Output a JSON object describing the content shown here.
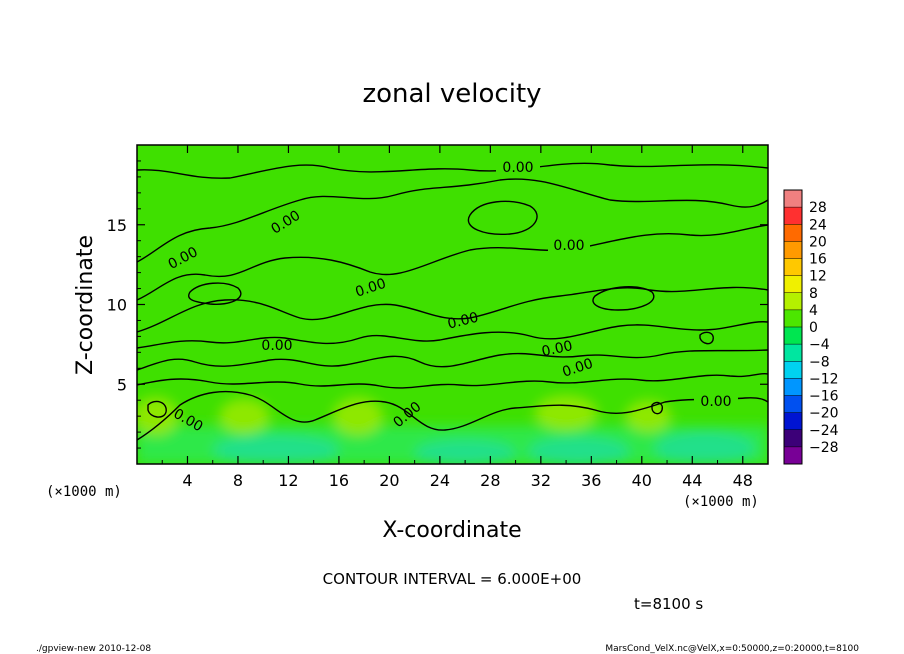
{
  "footer": {
    "left": "./gpview-new  2010-12-08",
    "right": "MarsCond_VelX.nc@VelX,x=0:50000,z=0:20000,t=8100"
  },
  "chart_data": {
    "type": "heatmap",
    "title": "zonal velocity",
    "xlabel": "X-coordinate",
    "ylabel": "Z-coordinate",
    "x_multiplier_label": "(×1000 m)",
    "x_multiplier_label_right": "(×1000 m)",
    "xlim": [
      0,
      50
    ],
    "ylim": [
      0,
      20
    ],
    "x_ticks": [
      "4",
      "8",
      "12",
      "16",
      "20",
      "24",
      "28",
      "32",
      "36",
      "40",
      "44",
      "48"
    ],
    "y_ticks": [
      "5",
      "10",
      "15"
    ],
    "contour_interval_text": "CONTOUR INTERVAL = 6.000E+00",
    "time_text": "t=8100 s",
    "contour_label_text": "0.00",
    "colorbar": {
      "labels": [
        "28",
        "24",
        "20",
        "16",
        "12",
        "8",
        "4",
        "0",
        "−4",
        "−8",
        "−12",
        "−16",
        "−20",
        "−24",
        "−28"
      ],
      "colors": [
        "#f08080",
        "#ff3030",
        "#ff6a00",
        "#ff9a00",
        "#ffc800",
        "#f0f000",
        "#b4f000",
        "#4ce600",
        "#00e650",
        "#00e6a0",
        "#00d2f0",
        "#0096ff",
        "#0050f0",
        "#0014d2",
        "#3c0078",
        "#780096"
      ]
    },
    "field": {
      "background_color": "#3fe000",
      "slight_negative_color": "#2ee84a",
      "strong_negative_color": "#20e08a",
      "weak_positive_color": "#8ee800"
    }
  }
}
